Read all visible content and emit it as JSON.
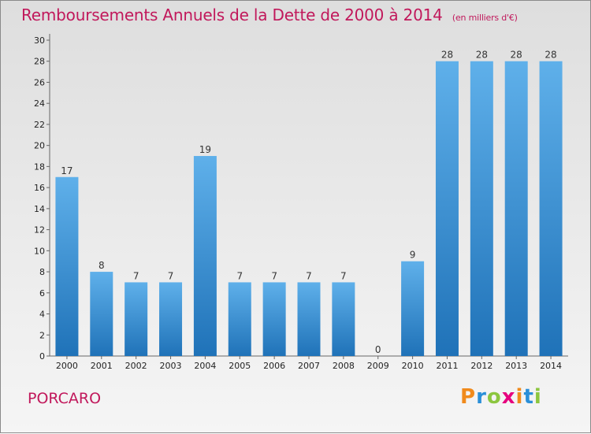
{
  "header": {
    "title": "Remboursements Annuels de la Dette de 2000 à 2014",
    "unit": "(en milliers d'€)"
  },
  "footer": {
    "town": "PORCARO",
    "brand": "Proxiti"
  },
  "colors": {
    "title": "#c1185b",
    "bar_top": "#5fb0ea",
    "bar_bottom": "#1f72b8",
    "logo_letters": [
      "#f08a1c",
      "#2a8fd8",
      "#8cc63f",
      "#e6007e",
      "#f08a1c",
      "#2a8fd8",
      "#8cc63f"
    ]
  },
  "chart_data": {
    "type": "bar",
    "title": "Remboursements Annuels de la Dette de 2000 à 2014",
    "xlabel": "",
    "ylabel": "",
    "categories": [
      "2000",
      "2001",
      "2002",
      "2003",
      "2004",
      "2005",
      "2006",
      "2007",
      "2008",
      "2009",
      "2010",
      "2011",
      "2012",
      "2013",
      "2014"
    ],
    "values": [
      17,
      8,
      7,
      7,
      19,
      7,
      7,
      7,
      7,
      0,
      9,
      28,
      28,
      28,
      28
    ],
    "ylim": [
      0,
      30
    ],
    "yticks": [
      0,
      2,
      4,
      6,
      8,
      10,
      12,
      14,
      16,
      18,
      20,
      22,
      24,
      26,
      28,
      30
    ],
    "grid": false,
    "legend": "none"
  }
}
